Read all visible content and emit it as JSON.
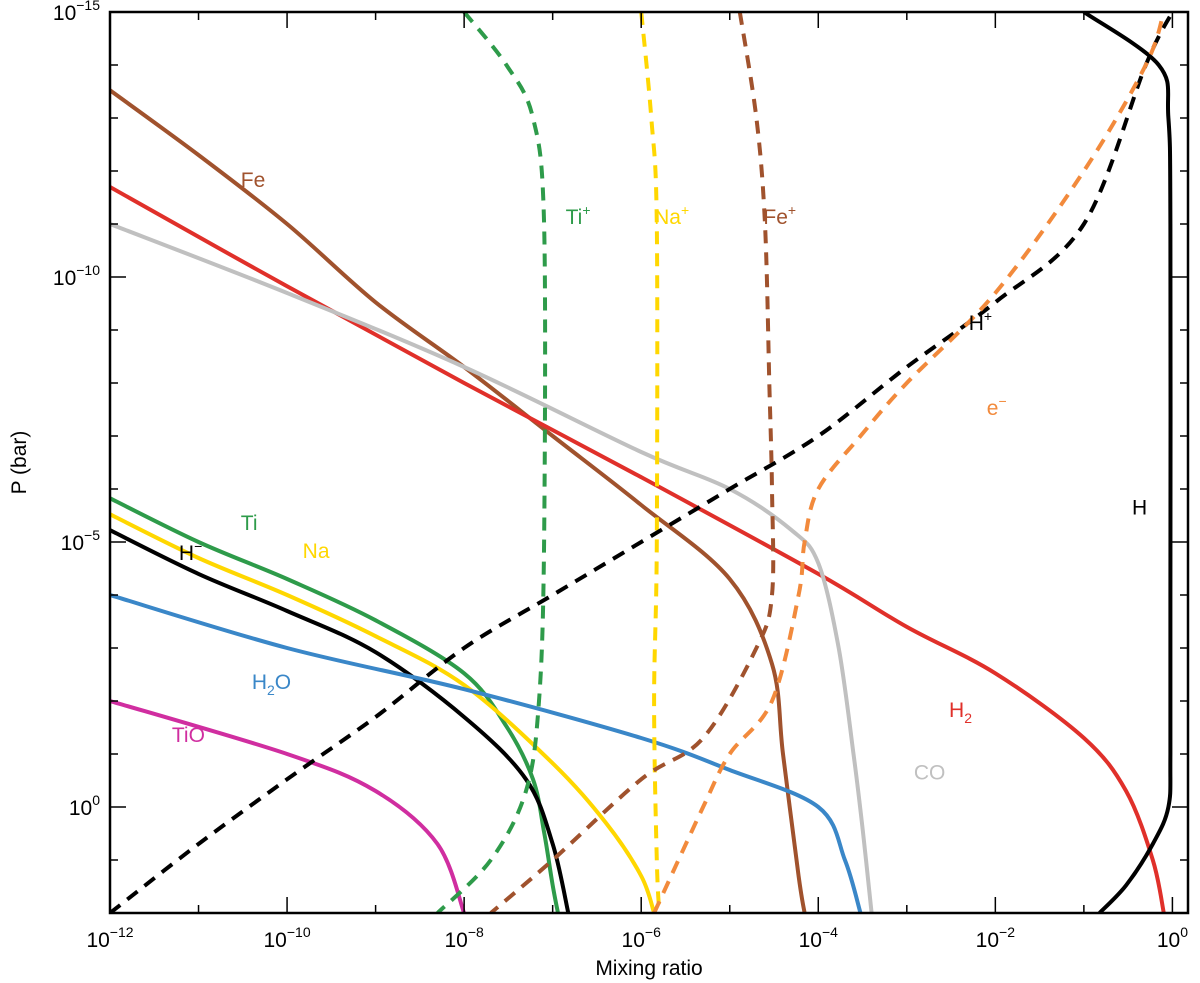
{
  "chart_data": {
    "type": "line",
    "title": "",
    "xlabel": "Mixing ratio",
    "ylabel": "P (bar)",
    "xscale": "log",
    "yscale": "log",
    "xlim": [
      1e-12,
      1.5
    ],
    "ylim": [
      1e-15,
      100
    ],
    "y_inverted": true,
    "grid": false,
    "legend": "none (inline labels)",
    "xticks": [
      {
        "value": 1e-12,
        "base": "10",
        "exp": "−12"
      },
      {
        "value": 1e-10,
        "base": "10",
        "exp": "−10"
      },
      {
        "value": 1e-08,
        "base": "10",
        "exp": "−8"
      },
      {
        "value": 1e-06,
        "base": "10",
        "exp": "−6"
      },
      {
        "value": 0.0001,
        "base": "10",
        "exp": "−4"
      },
      {
        "value": 0.01,
        "base": "10",
        "exp": "−2"
      },
      {
        "value": 1,
        "base": "10",
        "exp": "0"
      }
    ],
    "yticks": [
      {
        "value": 1e-15,
        "base": "10",
        "exp": "−15"
      },
      {
        "value": 1e-10,
        "base": "10",
        "exp": "−10"
      },
      {
        "value": 1e-05,
        "base": "10",
        "exp": "−5"
      },
      {
        "value": 1,
        "base": "10",
        "exp": "0"
      }
    ],
    "series": [
      {
        "name": "Fe",
        "color": "#a0522d",
        "dash": false,
        "label": {
          "base": "Fe",
          "sup": "",
          "sub": "",
          "at": [
            3e-11,
            2e-12
          ]
        },
        "points": [
          [
            1e-12,
            3e-14
          ],
          [
            1e-11,
            5e-13
          ],
          [
            1e-10,
            1e-11
          ],
          [
            1e-09,
            3e-10
          ],
          [
            1e-08,
            5e-09
          ],
          [
            1e-07,
            1e-07
          ],
          [
            1e-06,
            2e-06
          ],
          [
            1e-05,
            5e-05
          ],
          [
            3e-05,
            0.002
          ],
          [
            4e-05,
            0.1
          ],
          [
            6e-05,
            20
          ],
          [
            7e-05,
            100
          ]
        ]
      },
      {
        "name": "H₂",
        "color": "#e0302a",
        "dash": false,
        "label": {
          "base": "H",
          "sup": "",
          "sub": "2",
          "at": [
            0.003,
            0.02
          ]
        },
        "points": [
          [
            1e-12,
            2e-12
          ],
          [
            1e-10,
            1.5e-10
          ],
          [
            1e-08,
            1e-08
          ],
          [
            1e-06,
            6e-07
          ],
          [
            0.0001,
            4e-05
          ],
          [
            0.001,
            0.0004
          ],
          [
            0.01,
            0.003
          ],
          [
            0.1,
            0.05
          ],
          [
            0.3,
            0.5
          ],
          [
            0.6,
            10
          ],
          [
            0.8,
            100
          ]
        ]
      },
      {
        "name": "CO",
        "color": "#c0c0c0",
        "dash": false,
        "label": {
          "base": "CO",
          "sup": "",
          "sub": "",
          "at": [
            0.0012,
            0.3
          ]
        },
        "points": [
          [
            1e-12,
            1e-11
          ],
          [
            1e-10,
            2e-10
          ],
          [
            1e-08,
            5e-09
          ],
          [
            1e-06,
            2e-07
          ],
          [
            1e-05,
            1e-06
          ],
          [
            5e-05,
            6e-06
          ],
          [
            0.0001,
            2.5e-05
          ],
          [
            0.00017,
            0.001
          ],
          [
            0.00025,
            0.1
          ],
          [
            0.00032,
            3
          ],
          [
            0.0004,
            100
          ]
        ]
      },
      {
        "name": "Ti",
        "color": "#2e9b4a",
        "dash": false,
        "label": {
          "base": "Ti",
          "sup": "",
          "sub": "",
          "at": [
            3e-11,
            6e-06
          ]
        },
        "points": [
          [
            1e-12,
            1.5e-06
          ],
          [
            1e-11,
            1e-05
          ],
          [
            1e-10,
            5e-05
          ],
          [
            1e-09,
            0.0003
          ],
          [
            1e-08,
            0.003
          ],
          [
            3e-08,
            0.03
          ],
          [
            6e-08,
            0.3
          ],
          [
            8e-08,
            3
          ],
          [
            1e-07,
            30
          ],
          [
            1.15e-07,
            100
          ]
        ]
      },
      {
        "name": "Na",
        "color": "#ffd700",
        "dash": false,
        "label": {
          "base": "Na",
          "sup": "",
          "sub": "",
          "at": [
            1.5e-10,
            2e-05
          ]
        },
        "points": [
          [
            1e-12,
            3e-06
          ],
          [
            1e-11,
            2e-05
          ],
          [
            1e-10,
            0.0001
          ],
          [
            1e-09,
            0.0006
          ],
          [
            1e-08,
            0.005
          ],
          [
            1e-07,
            0.15
          ],
          [
            4e-07,
            2
          ],
          [
            1e-06,
            20
          ],
          [
            1.4e-06,
            100
          ]
        ]
      },
      {
        "name": "H⁻",
        "color": "#000000",
        "dash": false,
        "label": {
          "base": "H",
          "sup": "−",
          "sub": "",
          "at": [
            6e-12,
            2.2e-05
          ]
        },
        "points": [
          [
            1e-12,
            6e-06
          ],
          [
            1e-11,
            4e-05
          ],
          [
            1e-10,
            0.0002
          ],
          [
            1e-09,
            0.0012
          ],
          [
            1e-08,
            0.02
          ],
          [
            5e-08,
            0.3
          ],
          [
            1e-07,
            5
          ],
          [
            1.5e-07,
            100
          ]
        ]
      },
      {
        "name": "H₂O",
        "color": "#3a87c8",
        "dash": false,
        "label": {
          "base": "H",
          "sup": "",
          "sub": "2",
          "tail": "O",
          "at": [
            4e-11,
            0.006
          ]
        },
        "points": [
          [
            1e-12,
            0.0001
          ],
          [
            1e-10,
            0.001
          ],
          [
            1e-08,
            0.006
          ],
          [
            1e-06,
            0.05
          ],
          [
            1e-05,
            0.2
          ],
          [
            0.0001,
            1
          ],
          [
            0.0002,
            10
          ],
          [
            0.0003,
            100
          ]
        ]
      },
      {
        "name": "TiO",
        "color": "#d02ea0",
        "dash": false,
        "label": {
          "base": "TiO",
          "sup": "",
          "sub": "",
          "at": [
            5e-12,
            0.06
          ]
        },
        "points": [
          [
            1e-12,
            0.01
          ],
          [
            1e-10,
            0.1
          ],
          [
            1e-09,
            0.5
          ],
          [
            5e-09,
            5
          ],
          [
            1e-08,
            100
          ]
        ]
      },
      {
        "name": "H",
        "color": "#000000",
        "dash": false,
        "label": {
          "base": "H",
          "sup": "",
          "sub": "",
          "at": [
            0.35,
            3e-06
          ]
        },
        "points": [
          [
            0.1,
            1e-15
          ],
          [
            0.7,
            1e-14
          ],
          [
            0.9,
            1e-13
          ],
          [
            0.95,
            1e-11
          ],
          [
            0.95,
            0.0001
          ],
          [
            0.95,
            0.1
          ],
          [
            0.9,
            1
          ],
          [
            0.6,
            5
          ],
          [
            0.3,
            30
          ],
          [
            0.15,
            100
          ]
        ]
      },
      {
        "name": "Ti⁺",
        "color": "#2e9b4a",
        "dash": true,
        "label": {
          "base": "Ti",
          "sup": "+",
          "sub": "",
          "at": [
            1.4e-07,
            1e-11
          ]
        },
        "points": [
          [
            1e-08,
            1e-15
          ],
          [
            3e-08,
            1e-14
          ],
          [
            6e-08,
            1e-13
          ],
          [
            8e-08,
            1e-11
          ],
          [
            8e-08,
            1e-05
          ],
          [
            7e-08,
            0.01
          ],
          [
            5e-08,
            0.5
          ],
          [
            2e-08,
            10
          ],
          [
            5e-09,
            100
          ]
        ]
      },
      {
        "name": "Na⁺",
        "color": "#ffd700",
        "dash": true,
        "label": {
          "base": "Na",
          "sup": "+",
          "sub": "",
          "at": [
            1.4e-06,
            1e-11
          ]
        },
        "points": [
          [
            1e-06,
            1e-15
          ],
          [
            1.3e-06,
            1e-13
          ],
          [
            1.5e-06,
            1e-11
          ],
          [
            1.5e-06,
            1e-05
          ],
          [
            1.4e-06,
            0.01
          ],
          [
            1.5e-06,
            10
          ],
          [
            1.6e-06,
            100
          ]
        ]
      },
      {
        "name": "Fe⁺",
        "color": "#a0522d",
        "dash": true,
        "label": {
          "base": "Fe",
          "sup": "+",
          "sub": "",
          "at": [
            2.4e-05,
            1e-11
          ]
        },
        "points": [
          [
            1.3e-05,
            1e-15
          ],
          [
            2e-05,
            1e-13
          ],
          [
            2.5e-05,
            1e-11
          ],
          [
            2.8e-05,
            1e-08
          ],
          [
            3e-05,
            1e-06
          ],
          [
            3e-05,
            0.0001
          ],
          [
            2e-05,
            0.001
          ],
          [
            5e-06,
            0.05
          ],
          [
            1e-06,
            0.3
          ],
          [
            1e-07,
            10
          ],
          [
            2e-08,
            100
          ]
        ]
      },
      {
        "name": "H⁺",
        "color": "#000000",
        "dash": true,
        "label": {
          "base": "H",
          "sup": "+",
          "sub": "",
          "at": [
            0.005,
            1e-09
          ]
        },
        "points": [
          [
            1e-12,
            100
          ],
          [
            1e-11,
            5
          ],
          [
            1e-10,
            0.3
          ],
          [
            1e-09,
            0.02
          ],
          [
            1e-08,
            0.001
          ],
          [
            1e-07,
            0.0001
          ],
          [
            1e-06,
            1e-05
          ],
          [
            1e-05,
            1e-06
          ],
          [
            0.0001,
            1e-07
          ],
          [
            0.001,
            5e-09
          ],
          [
            0.01,
            3e-10
          ],
          [
            0.1,
            1e-11
          ],
          [
            0.5,
            1e-14
          ],
          [
            1,
            1e-15
          ]
        ]
      },
      {
        "name": "e⁻",
        "color": "#f28a3c",
        "dash": true,
        "label": {
          "base": "e",
          "sup": "−",
          "sub": "",
          "at": [
            0.008,
            4e-08
          ]
        },
        "points": [
          [
            1.4e-06,
            100
          ],
          [
            5e-06,
            1
          ],
          [
            1e-05,
            0.1
          ],
          [
            3e-05,
            0.01
          ],
          [
            6e-05,
            0.0001
          ],
          [
            7e-05,
            1e-05
          ],
          [
            0.0001,
            1e-06
          ],
          [
            0.0003,
            1e-07
          ],
          [
            0.001,
            1e-08
          ],
          [
            0.01,
            2e-10
          ],
          [
            0.1,
            1e-12
          ],
          [
            0.5,
            1e-14
          ],
          [
            0.8,
            1e-15
          ]
        ]
      }
    ]
  }
}
